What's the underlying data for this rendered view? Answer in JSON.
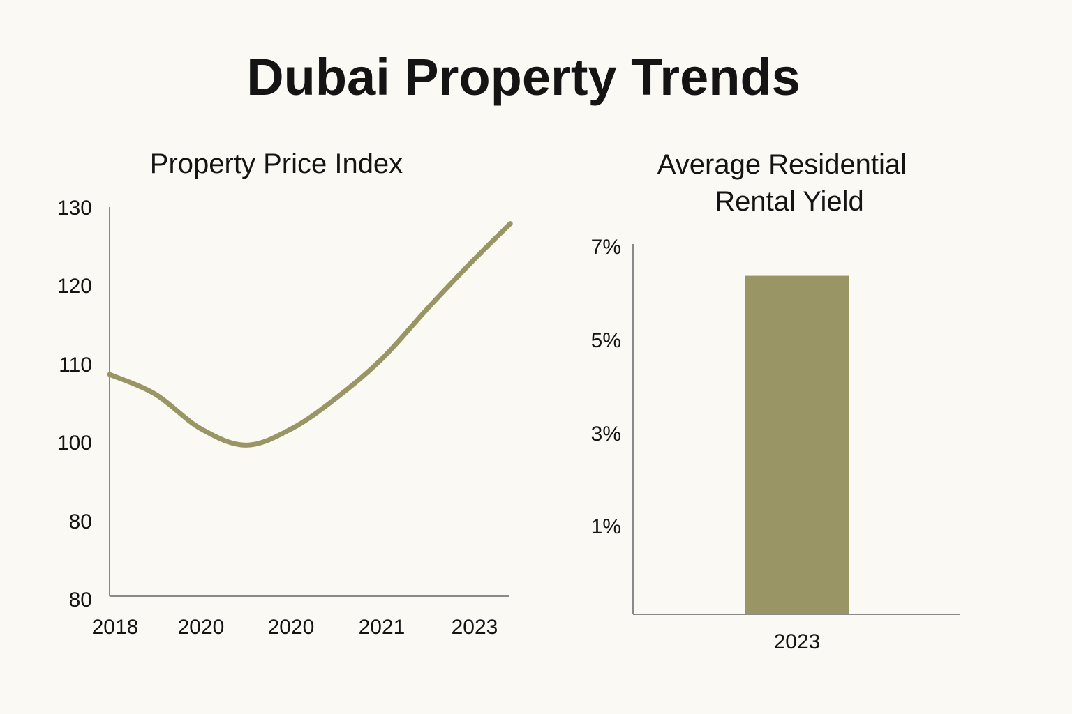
{
  "page": {
    "title": "Dubai Property Trends"
  },
  "colors": {
    "series": "#9a9565",
    "axis": "#8a8a8a",
    "background": "#fbf9f4",
    "text": "#141414"
  },
  "chart_data": [
    {
      "type": "line",
      "title": "Property Price Index",
      "xlabel": "",
      "ylabel": "",
      "x_tick_labels": [
        "2018",
        "2020",
        "2020",
        "2021",
        "2023"
      ],
      "y_tick_labels": [
        "130",
        "120",
        "110",
        "100",
        "80",
        "80"
      ],
      "series": [
        {
          "name": "Property Price Index",
          "x": [
            0,
            0.5,
            1,
            1.5,
            2,
            2.5,
            3,
            3.5,
            4,
            4.4
          ],
          "values": [
            108.7,
            106.2,
            101.8,
            99.7,
            101.8,
            105.8,
            110.8,
            117.2,
            123.3,
            127.9
          ]
        }
      ],
      "grid": false,
      "legend": "none"
    },
    {
      "type": "bar",
      "title": "Average Residential Rental Yield",
      "title_lines": [
        "Average Residential",
        "Rental Yield"
      ],
      "categories": [
        "2023"
      ],
      "values": [
        6.35
      ],
      "y_tick_labels": [
        "7%",
        "5%",
        "3%",
        "1%"
      ],
      "xlabel": "",
      "ylabel": "",
      "grid": false,
      "legend": "none"
    }
  ]
}
